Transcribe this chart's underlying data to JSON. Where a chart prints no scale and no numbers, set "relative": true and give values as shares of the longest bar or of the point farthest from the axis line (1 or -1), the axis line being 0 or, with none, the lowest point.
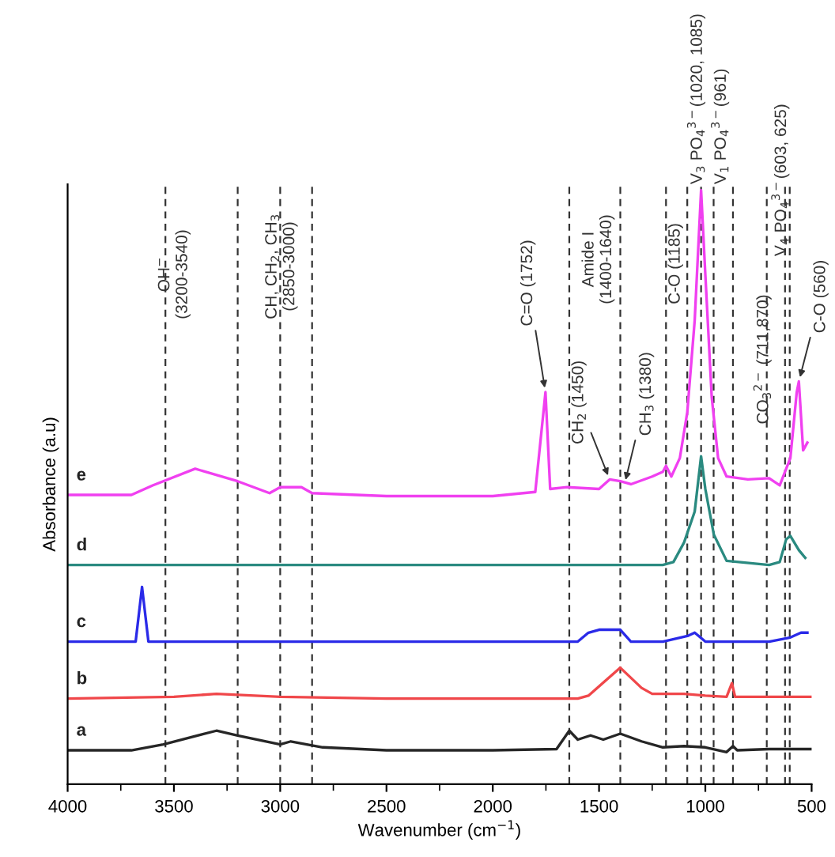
{
  "chart_data": {
    "type": "line",
    "relative": true,
    "xlabel": "Wavenumber (cm$^{−1}$)",
    "ylabel": "Absorbance (a.u)",
    "xlim": [
      4000,
      500
    ],
    "xticks": [
      4000,
      3500,
      3000,
      2500,
      2000,
      1500,
      1000,
      500
    ],
    "grid": false,
    "series": [
      {
        "name": "a",
        "color": "#262626",
        "x": [
          4000,
          3700,
          3550,
          3300,
          3200,
          3000,
          2950,
          2800,
          2500,
          2000,
          1700,
          1640,
          1600,
          1540,
          1480,
          1400,
          1300,
          1200,
          1100,
          1000,
          900,
          870,
          850,
          700,
          500
        ],
        "values": [
          0.057,
          0.057,
          0.067,
          0.09,
          0.082,
          0.067,
          0.072,
          0.062,
          0.057,
          0.057,
          0.059,
          0.09,
          0.075,
          0.082,
          0.075,
          0.085,
          0.072,
          0.062,
          0.064,
          0.062,
          0.054,
          0.064,
          0.057,
          0.059,
          0.059
        ]
      },
      {
        "name": "b",
        "color": "#f0474a",
        "x": [
          4000,
          3500,
          3300,
          3000,
          2500,
          2000,
          1600,
          1550,
          1400,
          1300,
          1250,
          1100,
          1000,
          900,
          875,
          860,
          700,
          500
        ],
        "values": [
          0.144,
          0.147,
          0.152,
          0.147,
          0.144,
          0.144,
          0.144,
          0.149,
          0.196,
          0.162,
          0.152,
          0.152,
          0.149,
          0.147,
          0.17,
          0.147,
          0.147,
          0.147
        ]
      },
      {
        "name": "c",
        "color": "#2a2ae8",
        "x": [
          4000,
          3680,
          3650,
          3620,
          3000,
          2000,
          1600,
          1550,
          1500,
          1400,
          1350,
          1200,
          1080,
          1050,
          1000,
          900,
          700,
          600,
          550,
          520
        ],
        "values": [
          0.24,
          0.24,
          0.332,
          0.24,
          0.24,
          0.24,
          0.24,
          0.255,
          0.26,
          0.26,
          0.24,
          0.24,
          0.25,
          0.255,
          0.24,
          0.24,
          0.24,
          0.247,
          0.255,
          0.255
        ]
      },
      {
        "name": "d",
        "color": "#2a8a80",
        "x": [
          4000,
          3000,
          2000,
          1200,
          1150,
          1100,
          1050,
          1020,
          1000,
          960,
          900,
          700,
          650,
          620,
          600,
          560,
          530
        ],
        "values": [
          0.369,
          0.369,
          0.369,
          0.369,
          0.374,
          0.407,
          0.459,
          0.552,
          0.497,
          0.42,
          0.376,
          0.369,
          0.374,
          0.412,
          0.418,
          0.394,
          0.381
        ]
      },
      {
        "name": "e",
        "color": "#f040f0",
        "x": [
          4000,
          3700,
          3600,
          3400,
          3200,
          3050,
          3000,
          2900,
          2850,
          2500,
          2000,
          1800,
          1752,
          1730,
          1650,
          1500,
          1450,
          1400,
          1350,
          1250,
          1200,
          1185,
          1160,
          1120,
          1085,
          1050,
          1020,
          1000,
          970,
          940,
          900,
          800,
          700,
          650,
          600,
          570,
          560,
          540,
          520
        ],
        "values": [
          0.487,
          0.487,
          0.503,
          0.531,
          0.51,
          0.49,
          0.5,
          0.5,
          0.49,
          0.485,
          0.485,
          0.492,
          0.66,
          0.497,
          0.5,
          0.497,
          0.513,
          0.51,
          0.505,
          0.518,
          0.526,
          0.536,
          0.518,
          0.549,
          0.626,
          0.781,
          1.0,
          0.858,
          0.652,
          0.549,
          0.518,
          0.513,
          0.515,
          0.503,
          0.549,
          0.66,
          0.678,
          0.562,
          0.575
        ]
      }
    ],
    "ref_lines": [
      {
        "axis": "x",
        "value": 3540,
        "line_style": "dashed",
        "color": "#333333"
      },
      {
        "axis": "x",
        "value": 3200,
        "line_style": "dashed",
        "color": "#333333"
      },
      {
        "axis": "x",
        "value": 3000,
        "line_style": "dashed",
        "color": "#333333"
      },
      {
        "axis": "x",
        "value": 2850,
        "line_style": "dashed",
        "color": "#333333"
      },
      {
        "axis": "x",
        "value": 1640,
        "line_style": "dashed",
        "color": "#333333"
      },
      {
        "axis": "x",
        "value": 1400,
        "line_style": "dashed",
        "color": "#333333"
      },
      {
        "axis": "x",
        "value": 1185,
        "line_style": "dashed",
        "color": "#333333"
      },
      {
        "axis": "x",
        "value": 1085,
        "line_style": "dashed",
        "color": "#333333"
      },
      {
        "axis": "x",
        "value": 1020,
        "line_style": "dashed",
        "color": "#333333"
      },
      {
        "axis": "x",
        "value": 961,
        "line_style": "dashed",
        "color": "#333333"
      },
      {
        "axis": "x",
        "value": 870,
        "line_style": "dashed",
        "color": "#333333"
      },
      {
        "axis": "x",
        "value": 711,
        "line_style": "dashed",
        "color": "#333333"
      },
      {
        "axis": "x",
        "value": 625,
        "line_style": "dashed",
        "color": "#333333"
      },
      {
        "axis": "x",
        "value": 603,
        "line_style": "dashed",
        "color": "#333333"
      }
    ],
    "annotations": [
      "OH$^{−}$\n(3200-3540)",
      "CH, CH$_{2}$, CH$_{3}$\n(2850-3000)",
      "Amide I\n(1400-1640)",
      "C-O (1185)",
      "V$_{3}$ PO$_{4}$$^{3−}$(1020, 1085)",
      "V$_{1}$ PO$_{4}$$^{3−}$(961)",
      "CO$_{3}$$^{2−}$ (711,870)",
      "V$_{4}$ PO$_{4}$$^{3−}$(603, 625)",
      {
        "text": "C=O (1752)",
        "x": 1752,
        "y": 0.66
      },
      {
        "text": "CH$_{2}$ (1450)",
        "x": 1450,
        "y": 0.513
      },
      {
        "text": "CH$_{3}$ (1380)",
        "x": 1380,
        "y": 0.505
      },
      {
        "text": "C-O (560)",
        "x": 560,
        "y": 0.678
      }
    ]
  }
}
